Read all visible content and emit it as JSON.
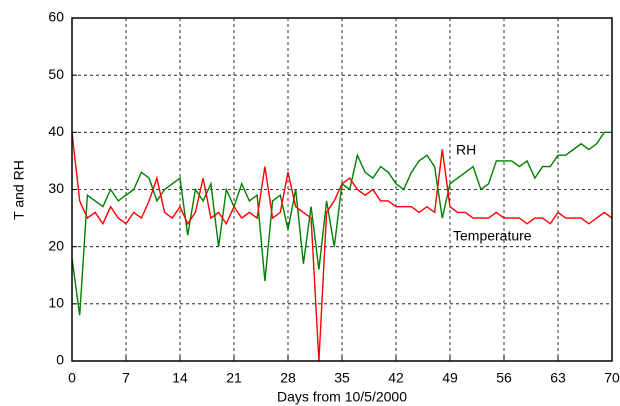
{
  "chart_data": {
    "type": "line",
    "x_label": "Days from 10/5/2000",
    "y_label": "T and RH",
    "annotations": [
      "RH",
      "Temperature"
    ],
    "x": [
      0,
      1,
      2,
      3,
      4,
      5,
      6,
      7,
      8,
      9,
      10,
      11,
      12,
      13,
      14,
      15,
      16,
      17,
      18,
      19,
      20,
      21,
      22,
      23,
      24,
      25,
      26,
      27,
      28,
      29,
      30,
      31,
      32,
      33,
      34,
      35,
      36,
      37,
      38,
      39,
      40,
      41,
      42,
      43,
      44,
      45,
      46,
      47,
      48,
      49,
      50,
      51,
      52,
      53,
      54,
      55,
      56,
      57,
      58,
      59,
      60,
      61,
      62,
      63,
      64,
      65,
      66,
      67,
      68,
      69,
      70
    ],
    "series": [
      {
        "name": "Temperature",
        "color": "#ff0000",
        "values": [
          40,
          28,
          25,
          26,
          24,
          27,
          25,
          24,
          26,
          25,
          28,
          32,
          26,
          25,
          27,
          24,
          26,
          32,
          25,
          26,
          24,
          27,
          25,
          26,
          25,
          34,
          25,
          26,
          33,
          27,
          26,
          25,
          0,
          26,
          28,
          31,
          32,
          30,
          29,
          30,
          28,
          28,
          27,
          27,
          27,
          26,
          27,
          26,
          37,
          27,
          26,
          26,
          25,
          25,
          25,
          26,
          25,
          25,
          25,
          24,
          25,
          25,
          24,
          26,
          25,
          25,
          25,
          24,
          25,
          26,
          25
        ]
      },
      {
        "name": "RH",
        "color": "#008000",
        "values": [
          18,
          8,
          29,
          28,
          27,
          30,
          28,
          29,
          30,
          33,
          32,
          28,
          30,
          31,
          32,
          22,
          30,
          28,
          31,
          20,
          30,
          27,
          31,
          28,
          29,
          14,
          28,
          29,
          23,
          30,
          17,
          27,
          16,
          28,
          20,
          31,
          30,
          36,
          33,
          32,
          34,
          33,
          31,
          30,
          33,
          35,
          36,
          34,
          25,
          31,
          32,
          33,
          34,
          30,
          31,
          35,
          35,
          35,
          34,
          35,
          32,
          34,
          34,
          36,
          36,
          37,
          38,
          37,
          38,
          40,
          40
        ]
      }
    ],
    "xlim": [
      0,
      70
    ],
    "ylim": [
      0,
      60
    ],
    "xticks": [
      0,
      7,
      14,
      21,
      28,
      35,
      42,
      49,
      56,
      63,
      70
    ],
    "yticks": [
      0,
      10,
      20,
      30,
      40,
      50,
      60
    ],
    "grid": true
  }
}
